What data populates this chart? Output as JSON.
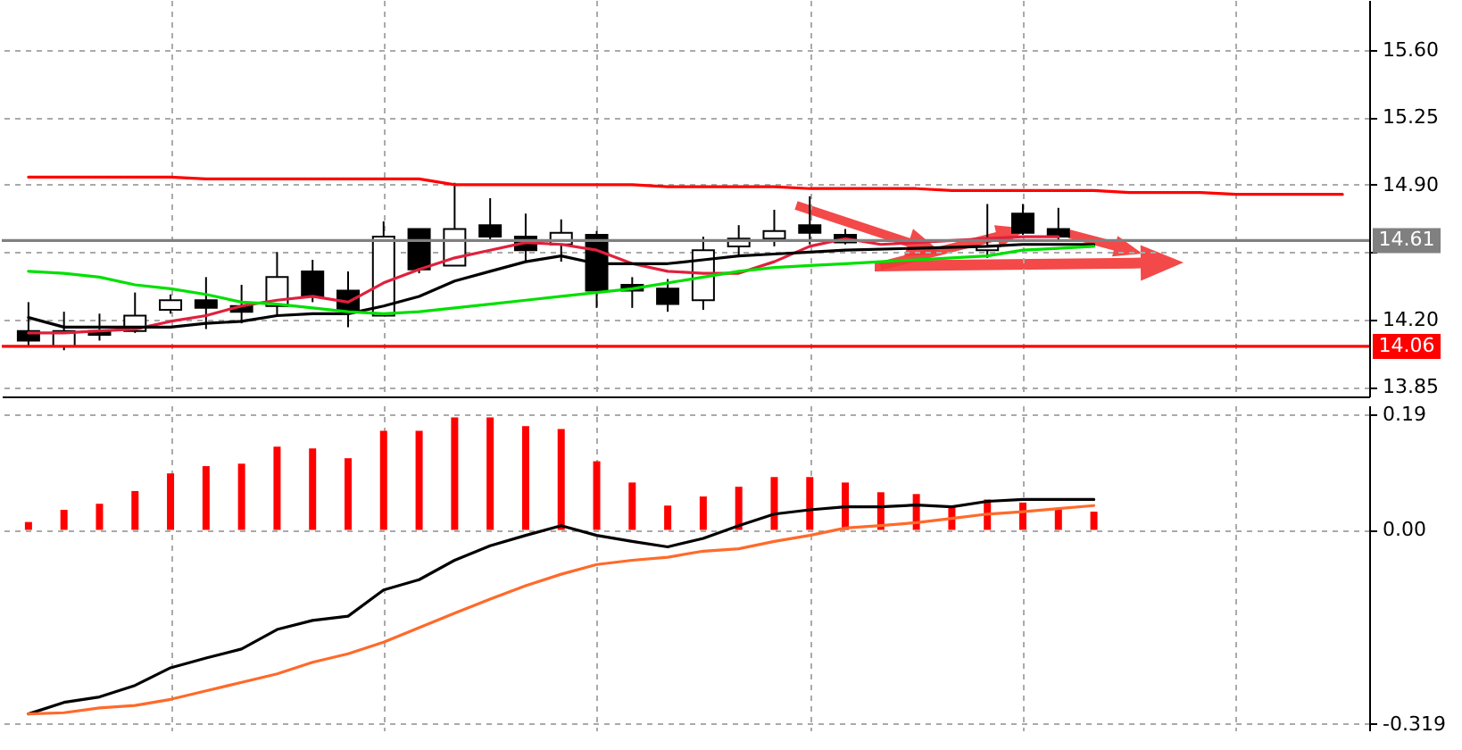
{
  "chart_data": [
    {
      "type": "candlestick",
      "categories": [
        null,
        null,
        null,
        null,
        null,
        null,
        null,
        null,
        null,
        null,
        null,
        null,
        null,
        null,
        null,
        null,
        null,
        null,
        null,
        null,
        null,
        null,
        null,
        null,
        null,
        null,
        null,
        null,
        null,
        null,
        null,
        null,
        null,
        null,
        null,
        null,
        null,
        null
      ],
      "ohlc": [
        [
          14.14,
          14.29,
          14.06,
          14.09
        ],
        [
          14.06,
          14.24,
          14.04,
          14.14
        ],
        [
          14.14,
          14.23,
          14.09,
          14.12
        ],
        [
          14.14,
          14.34,
          14.13,
          14.22
        ],
        [
          14.25,
          14.33,
          14.23,
          14.3
        ],
        [
          14.3,
          14.42,
          14.15,
          14.26
        ],
        [
          14.27,
          14.38,
          14.18,
          14.24
        ],
        [
          14.27,
          14.55,
          14.22,
          14.42
        ],
        [
          14.45,
          14.51,
          14.29,
          14.32
        ],
        [
          14.35,
          14.45,
          14.16,
          14.25
        ],
        [
          14.22,
          14.71,
          14.22,
          14.63
        ],
        [
          14.67,
          14.67,
          14.44,
          14.46
        ],
        [
          14.48,
          14.91,
          14.48,
          14.67
        ],
        [
          14.69,
          14.83,
          14.61,
          14.63
        ],
        [
          14.63,
          14.75,
          14.5,
          14.56
        ],
        [
          14.59,
          14.72,
          14.5,
          14.65
        ],
        [
          14.64,
          14.66,
          14.26,
          14.35
        ],
        [
          14.38,
          14.42,
          14.26,
          14.35
        ],
        [
          14.36,
          14.41,
          14.24,
          14.28
        ],
        [
          14.3,
          14.63,
          14.25,
          14.56
        ],
        [
          14.58,
          14.69,
          14.53,
          14.62
        ],
        [
          14.62,
          14.77,
          14.58,
          14.66
        ],
        [
          14.69,
          14.84,
          14.59,
          14.65
        ],
        [
          14.64,
          14.67,
          14.59,
          14.6
        ],
        null,
        null,
        null,
        [
          14.56,
          14.8,
          14.52,
          14.58
        ],
        [
          14.75,
          14.8,
          14.64,
          14.65
        ],
        [
          14.67,
          14.78,
          14.61,
          14.63
        ],
        null,
        null,
        null,
        null,
        null,
        null,
        null,
        null
      ],
      "series": [
        {
          "type": "line",
          "color": "#e0203c",
          "values": [
            14.13,
            14.13,
            14.14,
            14.15,
            14.19,
            14.22,
            14.27,
            14.3,
            14.32,
            14.29,
            14.39,
            14.46,
            14.52,
            14.56,
            14.6,
            14.59,
            14.56,
            14.49,
            14.45,
            14.44,
            14.44,
            14.5,
            14.58,
            14.62,
            14.59,
            null,
            null,
            null,
            14.63,
            14.63,
            null,
            null,
            null,
            null,
            null,
            null,
            null,
            null
          ]
        },
        {
          "type": "line",
          "color": "#000000",
          "values": [
            14.21,
            14.16,
            14.16,
            14.16,
            14.16,
            14.18,
            14.19,
            14.22,
            14.23,
            14.23,
            14.27,
            14.32,
            14.4,
            14.45,
            14.5,
            14.53,
            14.49,
            14.49,
            14.49,
            14.51,
            14.53,
            14.54,
            14.55,
            14.56,
            null,
            null,
            null,
            14.58,
            14.59,
            14.59,
            14.59,
            null,
            null,
            null,
            null,
            null,
            null,
            null
          ]
        },
        {
          "type": "line",
          "color": "#00e000",
          "values": [
            14.45,
            14.44,
            14.42,
            14.38,
            14.36,
            14.33,
            14.29,
            14.28,
            14.26,
            14.24,
            14.23,
            14.24,
            14.26,
            14.28,
            14.3,
            14.32,
            14.34,
            14.36,
            14.39,
            14.42,
            14.45,
            14.47,
            14.48,
            14.49,
            null,
            null,
            null,
            14.53,
            14.56,
            14.57,
            14.58,
            null,
            null,
            null,
            null,
            null,
            null,
            null
          ]
        },
        {
          "type": "line",
          "color": "#ff0000",
          "values": [
            14.94,
            14.94,
            14.94,
            14.94,
            14.94,
            14.93,
            14.93,
            14.93,
            14.93,
            14.93,
            14.93,
            14.93,
            14.9,
            14.9,
            14.9,
            14.9,
            14.9,
            14.9,
            14.89,
            14.89,
            14.89,
            14.89,
            14.88,
            14.88,
            14.88,
            14.88,
            14.87,
            14.87,
            14.87,
            14.87,
            14.87,
            14.86,
            14.86,
            14.86,
            14.85,
            14.85,
            14.85,
            14.85
          ]
        }
      ],
      "ylim": [
        13.8,
        15.86
      ],
      "yticks": [
        {
          "value": 13.85,
          "label": "13.85"
        },
        {
          "value": 14.2,
          "label": "14.20"
        },
        {
          "value": 14.55,
          "label": null
        },
        {
          "value": 14.9,
          "label": "14.90"
        },
        {
          "value": 15.25,
          "label": "15.25"
        },
        {
          "value": 15.6,
          "label": "15.60"
        }
      ],
      "ref_lines": [
        {
          "axis": "y",
          "value": 14.06,
          "label": "14.06",
          "color": "#ff0000"
        },
        {
          "axis": "y",
          "value": 14.61,
          "label": "14.61",
          "color": "#808080"
        }
      ],
      "grid": true,
      "tick_labels": "y"
    },
    {
      "type": "bar",
      "categories": [
        null,
        null,
        null,
        null,
        null,
        null,
        null,
        null,
        null,
        null,
        null,
        null,
        null,
        null,
        null,
        null,
        null,
        null,
        null,
        null,
        null,
        null,
        null,
        null,
        null,
        null,
        null,
        null,
        null,
        null,
        null,
        null,
        null,
        null,
        null,
        null,
        null,
        null
      ],
      "series": [
        {
          "type": "bar",
          "color": "#ff0000",
          "values": [
            0.013,
            0.033,
            0.043,
            0.064,
            0.093,
            0.105,
            0.109,
            0.137,
            0.134,
            0.118,
            0.163,
            0.163,
            0.185,
            0.185,
            0.171,
            0.166,
            0.113,
            0.078,
            0.04,
            0.055,
            0.071,
            0.087,
            0.087,
            0.078,
            0.062,
            0.059,
            0.038,
            0.05,
            0.045,
            0.036,
            0.03,
            null,
            null,
            null,
            null,
            null,
            null,
            null
          ]
        },
        {
          "type": "line",
          "color": "#000000",
          "values": [
            -0.303,
            -0.284,
            -0.275,
            -0.256,
            -0.227,
            -0.211,
            -0.196,
            -0.164,
            -0.149,
            -0.142,
            -0.099,
            -0.082,
            -0.05,
            -0.026,
            -0.009,
            0.007,
            -0.009,
            -0.019,
            -0.028,
            -0.014,
            0.007,
            0.026,
            0.033,
            0.038,
            0.038,
            0.041,
            0.038,
            0.047,
            0.05,
            0.05,
            0.05,
            null,
            null,
            null,
            null,
            null,
            null,
            null
          ]
        },
        {
          "type": "line",
          "color": "#ff6a2a",
          "values": [
            -0.303,
            -0.301,
            -0.293,
            -0.289,
            -0.279,
            -0.265,
            -0.251,
            -0.237,
            -0.218,
            -0.204,
            -0.185,
            -0.161,
            -0.137,
            -0.114,
            -0.092,
            -0.073,
            -0.057,
            -0.05,
            -0.045,
            -0.035,
            -0.031,
            -0.019,
            -0.009,
            0.003,
            0.007,
            0.012,
            0.019,
            0.026,
            0.03,
            0.035,
            0.04,
            null,
            null,
            null,
            null,
            null,
            null,
            null
          ]
        }
      ],
      "ylim": [
        -0.33,
        0.205
      ],
      "yticks": [
        {
          "value": 0.19,
          "label": "0.19"
        },
        {
          "value": 0,
          "label": "0.00"
        },
        {
          "value": -0.319,
          "label": "-0.319"
        }
      ],
      "grid": true,
      "tick_labels": "y"
    }
  ]
}
